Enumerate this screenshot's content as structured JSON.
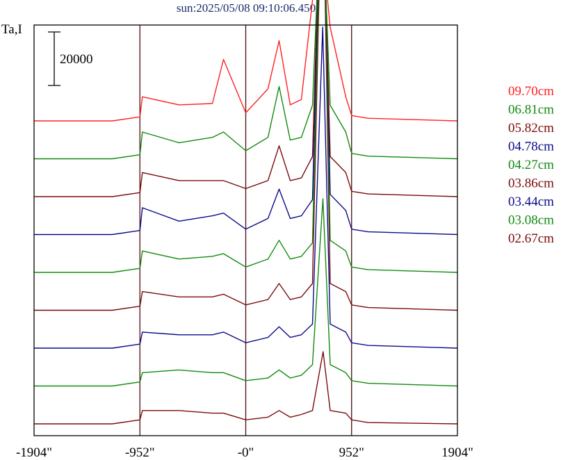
{
  "title": "sun:2025/05/08 09:10:06.450",
  "colors": {
    "red": "#ff2020",
    "green": "#108a10",
    "maroon": "#7a0a0a",
    "blue": "#0a0a8a",
    "frame": "#000000",
    "marker": "#4a0a0a"
  },
  "chart_data": {
    "type": "line",
    "title": "sun:2025/05/08 09:10:06.450",
    "ylabel": "Ta,I",
    "xlabel": "",
    "scale_bar": {
      "label": "20000",
      "value": 20000
    },
    "x_ticks": [
      "-1904\"",
      "-952\"",
      "-0\"",
      "952\"",
      "1904\""
    ],
    "x_tick_values": [
      -1904,
      -952,
      0,
      952,
      1904
    ],
    "xlim": [
      -1904,
      1904
    ],
    "vertical_markers": [
      -952,
      0,
      952
    ],
    "grid": false,
    "legend_position": "right",
    "series": [
      {
        "name": "09.70cm",
        "color": "#ff2020",
        "baseline": 0,
        "peak_x": 680,
        "peak_y": 69000,
        "x": [
          -1904,
          -1200,
          -952,
          -930,
          -600,
          -300,
          -200,
          0,
          200,
          300,
          400,
          500,
          600,
          680,
          760,
          900,
          952,
          1100,
          1904
        ],
        "y": [
          0,
          0,
          1500,
          9000,
          6000,
          6500,
          23000,
          3000,
          12000,
          30000,
          6000,
          8000,
          45000,
          69000,
          35000,
          9000,
          2000,
          1000,
          0
        ]
      },
      {
        "name": "06.81cm",
        "color": "#108a10",
        "baseline": 0,
        "peak_x": 682,
        "peak_y": 103000,
        "x": [
          -1904,
          -1200,
          -952,
          -930,
          -600,
          -300,
          -200,
          0,
          200,
          300,
          400,
          500,
          600,
          682,
          760,
          900,
          952,
          1100,
          1904
        ],
        "y": [
          0,
          0,
          1500,
          10000,
          6000,
          8000,
          10000,
          3000,
          8000,
          27000,
          7000,
          8000,
          20000,
          103000,
          20000,
          10000,
          2000,
          1000,
          0
        ]
      },
      {
        "name": "05.82cm",
        "color": "#7a0a0a",
        "baseline": 0,
        "peak_x": 684,
        "peak_y": 128000,
        "x": [
          -1904,
          -1200,
          -952,
          -930,
          -600,
          -300,
          -200,
          0,
          200,
          300,
          400,
          500,
          600,
          684,
          760,
          900,
          952,
          1100,
          1904
        ],
        "y": [
          0,
          0,
          1500,
          9000,
          6000,
          6000,
          6000,
          3000,
          6000,
          19000,
          6000,
          7000,
          15000,
          128000,
          15000,
          9000,
          2000,
          1000,
          0
        ]
      },
      {
        "name": "04.78cm",
        "color": "#0a0a8a",
        "baseline": 0,
        "peak_x": 686,
        "peak_y": 150000,
        "x": [
          -1904,
          -1200,
          -952,
          -930,
          -600,
          -300,
          -200,
          0,
          200,
          300,
          400,
          500,
          600,
          686,
          760,
          900,
          952,
          1100,
          1904
        ],
        "y": [
          0,
          0,
          1500,
          10000,
          5000,
          7000,
          8000,
          2000,
          6000,
          17000,
          6000,
          7000,
          13000,
          150000,
          15000,
          9000,
          2000,
          1000,
          0
        ]
      },
      {
        "name": "04.27cm",
        "color": "#108a10",
        "baseline": 0,
        "peak_x": 688,
        "peak_y": 162000,
        "x": [
          -1904,
          -1200,
          -952,
          -930,
          -600,
          -300,
          -200,
          0,
          200,
          300,
          400,
          500,
          600,
          688,
          760,
          900,
          952,
          1100,
          1904
        ],
        "y": [
          0,
          0,
          1500,
          8000,
          5000,
          6000,
          7000,
          2000,
          5000,
          12000,
          5000,
          6000,
          11000,
          162000,
          12000,
          8000,
          2000,
          1000,
          0
        ]
      },
      {
        "name": "03.86cm",
        "color": "#7a0a0a",
        "baseline": 0,
        "peak_x": 690,
        "peak_y": 174000,
        "x": [
          -1904,
          -1200,
          -952,
          -930,
          -600,
          -300,
          -200,
          0,
          200,
          300,
          400,
          500,
          600,
          690,
          760,
          900,
          952,
          1100,
          1904
        ],
        "y": [
          0,
          0,
          1500,
          7000,
          5000,
          5000,
          6000,
          2000,
          4000,
          10000,
          4000,
          5000,
          10000,
          174000,
          10000,
          7000,
          2000,
          1000,
          0
        ]
      },
      {
        "name": "03.44cm",
        "color": "#0a0a8a",
        "baseline": 0,
        "peak_x": 692,
        "peak_y": 120000,
        "x": [
          -1904,
          -1200,
          -952,
          -930,
          -600,
          -300,
          -200,
          0,
          200,
          300,
          400,
          500,
          600,
          692,
          760,
          900,
          952,
          1100,
          1904
        ],
        "y": [
          0,
          0,
          1500,
          6000,
          5000,
          5000,
          6000,
          2000,
          4000,
          8000,
          4000,
          5000,
          9000,
          120000,
          9000,
          6000,
          2000,
          1000,
          0
        ]
      },
      {
        "name": "03.08cm",
        "color": "#108a10",
        "baseline": 0,
        "peak_x": 694,
        "peak_y": 70000,
        "x": [
          -1904,
          -1200,
          -952,
          -930,
          -600,
          -300,
          -200,
          0,
          200,
          300,
          400,
          500,
          600,
          694,
          760,
          900,
          952,
          1100,
          1904
        ],
        "y": [
          0,
          0,
          1500,
          5000,
          6000,
          5000,
          5000,
          2000,
          3000,
          6000,
          3000,
          4000,
          8000,
          70000,
          8000,
          5000,
          2000,
          1000,
          0
        ]
      },
      {
        "name": "02.67cm",
        "color": "#7a0a0a",
        "baseline": 0,
        "peak_x": 696,
        "peak_y": 27000,
        "x": [
          -1904,
          -1200,
          -952,
          -930,
          -600,
          -300,
          -200,
          0,
          200,
          300,
          400,
          500,
          600,
          696,
          760,
          900,
          952,
          1100,
          1904
        ],
        "y": [
          0,
          0,
          1500,
          5000,
          5000,
          4000,
          4000,
          1500,
          2500,
          5000,
          2500,
          3500,
          5000,
          27000,
          5000,
          4000,
          1500,
          500,
          0
        ]
      }
    ]
  }
}
